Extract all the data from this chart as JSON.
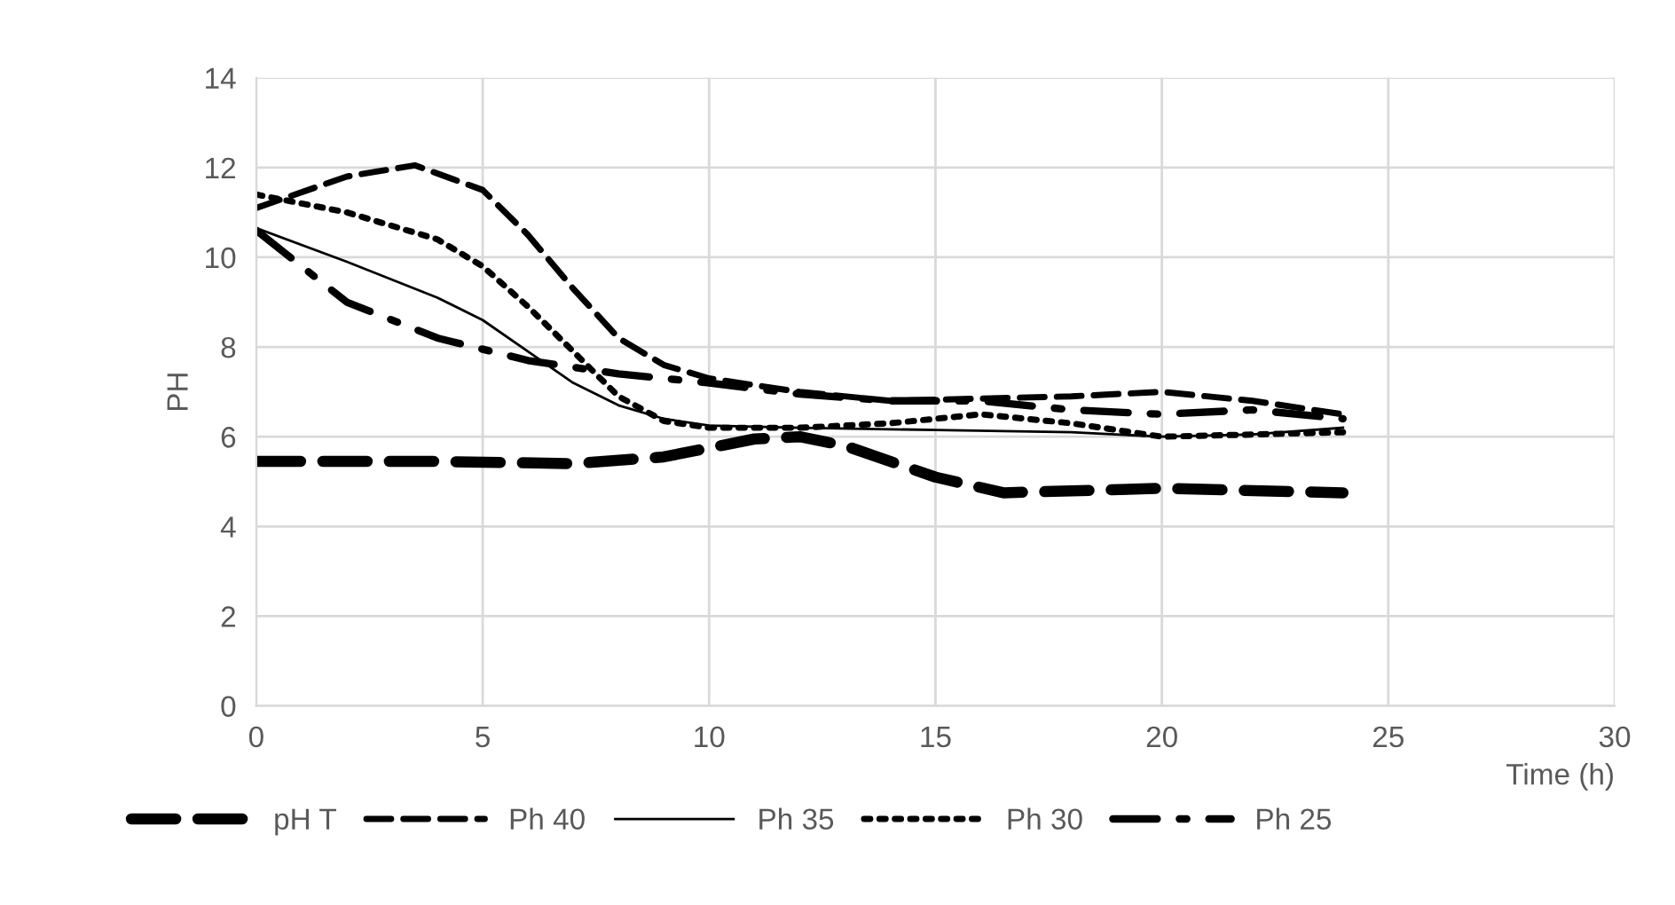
{
  "chart_data": {
    "type": "line",
    "xlabel": "Time (h)",
    "ylabel": "PH",
    "xlim": [
      0,
      30
    ],
    "xticks": [
      0,
      5,
      10,
      15,
      20,
      25,
      30
    ],
    "ylim": [
      0,
      14
    ],
    "yticks": [
      0,
      2,
      4,
      6,
      8,
      10,
      12,
      14
    ],
    "grid": true,
    "legend": "bottom",
    "marker": "none",
    "series": [
      {
        "name": "pH T",
        "color": "#000000",
        "line_style": "dashed",
        "x": [
          0,
          4,
          7,
          9,
          11,
          12,
          13,
          15,
          16.5,
          20,
          24
        ],
        "values": [
          5.45,
          5.45,
          5.4,
          5.55,
          5.95,
          6.0,
          5.8,
          5.1,
          4.75,
          4.85,
          4.75
        ]
      },
      {
        "name": "Ph 40",
        "color": "#000000",
        "line_style": "dashed",
        "x": [
          0,
          2,
          3.5,
          5,
          6,
          7,
          8,
          9,
          10,
          12,
          14,
          16,
          18,
          20,
          22,
          24
        ],
        "values": [
          11.1,
          11.8,
          12.05,
          11.5,
          10.5,
          9.3,
          8.2,
          7.6,
          7.3,
          7.0,
          6.8,
          6.85,
          6.9,
          7.0,
          6.8,
          6.5
        ]
      },
      {
        "name": "Ph 35",
        "color": "#000000",
        "line_style": "solid",
        "x": [
          0,
          2,
          4,
          5,
          6,
          7,
          8,
          9,
          10,
          12,
          15,
          18,
          20,
          22,
          24
        ],
        "values": [
          10.65,
          9.9,
          9.1,
          8.6,
          7.9,
          7.2,
          6.7,
          6.4,
          6.25,
          6.2,
          6.15,
          6.1,
          6.0,
          6.05,
          6.2
        ]
      },
      {
        "name": "Ph 30",
        "color": "#000000",
        "line_style": "dotted",
        "x": [
          0,
          2,
          4,
          5,
          6,
          7,
          8,
          9,
          10,
          12,
          14,
          16,
          18,
          20,
          22,
          24
        ],
        "values": [
          11.4,
          11.0,
          10.4,
          9.8,
          8.9,
          7.9,
          6.9,
          6.35,
          6.2,
          6.2,
          6.3,
          6.5,
          6.3,
          6.0,
          6.05,
          6.1
        ]
      },
      {
        "name": "Ph 25",
        "color": "#000000",
        "line_style": "dashdot",
        "x": [
          0,
          2,
          4,
          6,
          8,
          10,
          12,
          14,
          16,
          18,
          20,
          22,
          24
        ],
        "values": [
          10.6,
          9.0,
          8.2,
          7.7,
          7.4,
          7.2,
          6.95,
          6.8,
          6.8,
          6.6,
          6.5,
          6.6,
          6.4
        ]
      }
    ]
  }
}
